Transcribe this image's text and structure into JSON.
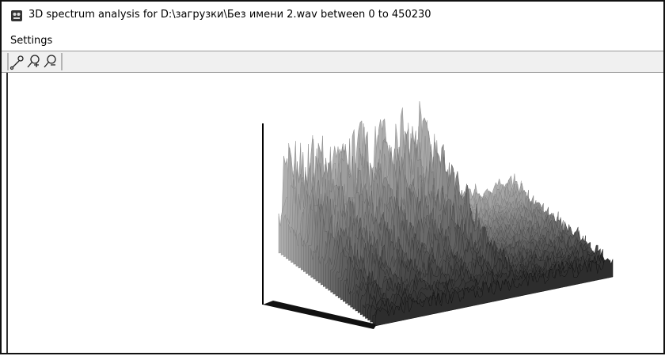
{
  "window": {
    "title": "3D spectrum analysis for D:\\загрузки\\Без имени 2.wav between 0 to 450230",
    "menu": [
      "Settings"
    ]
  }
}
